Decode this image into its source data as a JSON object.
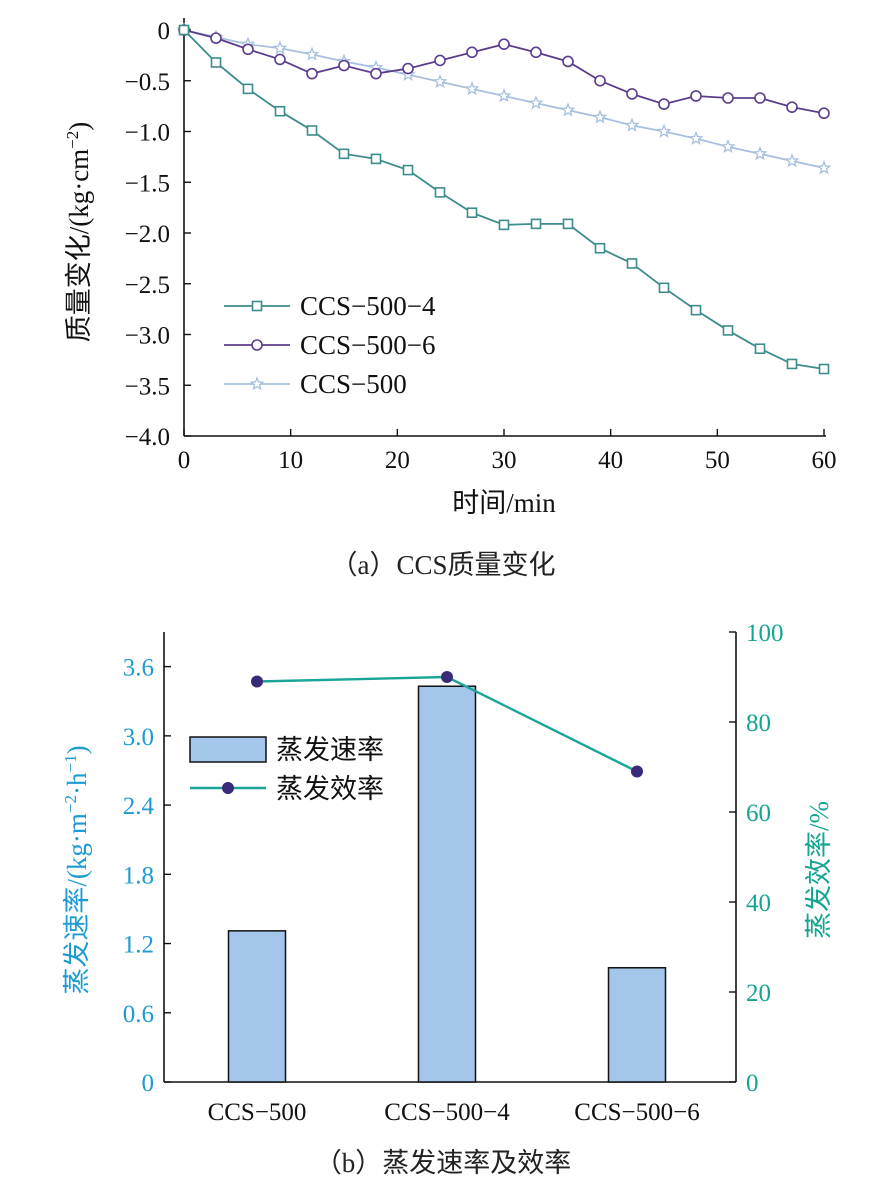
{
  "chart_data": [
    {
      "type": "line",
      "caption": "（a）CCS质量变化",
      "xlabel": "时间/min",
      "ylabel_main": "质量变化/(kg·cm",
      "ylabel_exp": "−2",
      "ylabel_close": ")",
      "xlim": [
        0,
        60
      ],
      "ylim": [
        -4.0,
        0
      ],
      "xticks": [
        "0",
        "10",
        "20",
        "30",
        "40",
        "50",
        "60"
      ],
      "yticks": [
        "0",
        "−0.5",
        "−1.0",
        "−1.5",
        "−2.0",
        "−2.5",
        "−3.0",
        "−3.5",
        "−4.0"
      ],
      "x": [
        0,
        3,
        6,
        9,
        12,
        15,
        18,
        21,
        24,
        27,
        30,
        33,
        36,
        39,
        42,
        45,
        48,
        51,
        54,
        57,
        60
      ],
      "series": [
        {
          "name": "CCS−500−4",
          "marker": "square",
          "color": "#3d8c8c",
          "values": [
            0,
            -0.32,
            -0.58,
            -0.8,
            -0.99,
            -1.22,
            -1.27,
            -1.38,
            -1.6,
            -1.8,
            -1.92,
            -1.91,
            -1.91,
            -2.15,
            -2.3,
            -2.54,
            -2.76,
            -2.96,
            -3.14,
            -3.29,
            -3.34
          ]
        },
        {
          "name": "CCS−500−6",
          "marker": "circle",
          "color": "#5b3d8c",
          "values": [
            0,
            -0.08,
            -0.19,
            -0.29,
            -0.43,
            -0.35,
            -0.43,
            -0.38,
            -0.3,
            -0.22,
            -0.14,
            -0.22,
            -0.31,
            -0.5,
            -0.63,
            -0.73,
            -0.65,
            -0.67,
            -0.67,
            -0.76,
            -0.82
          ]
        },
        {
          "name": "CCS−500",
          "marker": "star",
          "color": "#a8c0de",
          "values": [
            0,
            -0.07,
            -0.14,
            -0.18,
            -0.24,
            -0.31,
            -0.37,
            -0.44,
            -0.51,
            -0.58,
            -0.65,
            -0.72,
            -0.79,
            -0.86,
            -0.94,
            -1.0,
            -1.07,
            -1.15,
            -1.22,
            -1.29,
            -1.36
          ]
        }
      ],
      "legend_position": "bottom-left",
      "grid": false
    },
    {
      "type": "bar",
      "caption": "（b）蒸发速率及效率",
      "categories": [
        "CCS−500",
        "CCS−500−4",
        "CCS−500−6"
      ],
      "ylabel_left_main": "蒸发速率/(kg·m",
      "ylabel_left_exp1": "−2",
      "ylabel_left_mid": "·h",
      "ylabel_left_exp2": "−1",
      "ylabel_left_close": ")",
      "ylabel_right": "蒸发效率/%",
      "ylim_left": [
        0,
        3.9
      ],
      "ylim_right": [
        0,
        100
      ],
      "yticks_left": [
        "0",
        "0.6",
        "1.2",
        "1.8",
        "2.4",
        "3.0",
        "3.6"
      ],
      "yticks_right": [
        "0",
        "20",
        "40",
        "60",
        "80",
        "100"
      ],
      "series": [
        {
          "name": "蒸发速率",
          "axis": "left",
          "kind": "bar",
          "color": "#a4c6ea",
          "values": [
            1.31,
            3.43,
            0.99
          ]
        },
        {
          "name": "蒸发效率",
          "axis": "right",
          "kind": "line",
          "color": "#1aa596",
          "marker_color": "#3b2a7a",
          "values": [
            89,
            90,
            69
          ]
        }
      ],
      "left_axis_color": "#1e9bd2",
      "right_axis_color": "#14a591",
      "legend_position": "top-left",
      "grid": false
    }
  ]
}
